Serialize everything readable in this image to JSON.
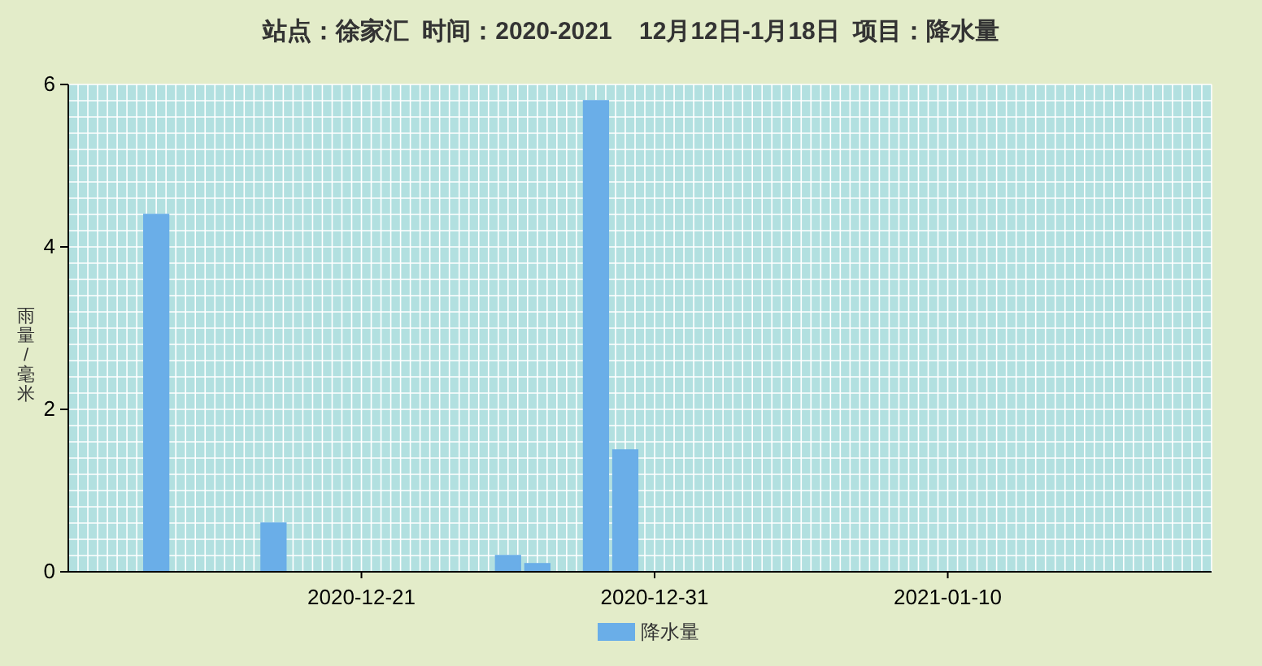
{
  "chart_data": {
    "type": "bar",
    "title": "站点：徐家汇  时间：2020-2021    12月12日-1月18日  项目：降水量",
    "ylabel": "雨量/毫米",
    "x": [
      "2020-12-14",
      "2020-12-18",
      "2020-12-26",
      "2020-12-27",
      "2020-12-29",
      "2020-12-30"
    ],
    "series": [
      {
        "name": "降水量",
        "color": "#6aaee8",
        "values": [
          4.4,
          0.6,
          0.2,
          0.1,
          5.8,
          1.5
        ]
      }
    ],
    "xlim": [
      "2020-12-11",
      "2021-01-19"
    ],
    "xticks": [
      "2020-12-21",
      "2020-12-31",
      "2021-01-10"
    ],
    "ylim": [
      0,
      6
    ],
    "yticks": [
      0,
      2,
      4,
      6
    ],
    "grid": true,
    "legend": "bottom"
  }
}
